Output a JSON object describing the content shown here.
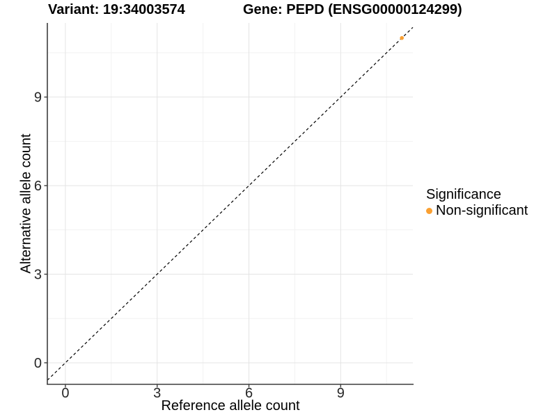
{
  "chart_data": {
    "type": "scatter",
    "title_left": "Variant: 19:34003574",
    "title_right": "Gene: PEPD (ENSG00000124299)",
    "xlabel": "Reference allele count",
    "ylabel": "Alternative allele count",
    "xlim": [
      -0.59,
      11.36
    ],
    "ylim": [
      -0.73,
      11.51
    ],
    "xticks": [
      0,
      3,
      6,
      9
    ],
    "yticks": [
      0,
      3,
      6,
      9
    ],
    "xticks_minor": [
      1.5,
      4.5,
      7.5,
      10.5
    ],
    "yticks_minor": [
      1.5,
      4.5,
      7.5,
      10.5
    ],
    "grid": "major+minor",
    "identity_line": {
      "equation": "y = x",
      "style": "dashed",
      "color": "#000000"
    },
    "series": [
      {
        "name": "Non-significant",
        "color": "#FAA032",
        "point_radius": 2.8,
        "points": [
          {
            "x": 11,
            "y": 11
          }
        ]
      }
    ],
    "legend": {
      "title": "Significance",
      "position": "right",
      "items": [
        {
          "label": "Non-significant",
          "color": "#FAA032"
        }
      ]
    },
    "colors": {
      "grid_major": "#E4E4E4",
      "grid_minor": "#F2F2F2",
      "axis": "#3C3C3C",
      "tick_text": "#262626",
      "background": "#FFFFFF"
    }
  }
}
